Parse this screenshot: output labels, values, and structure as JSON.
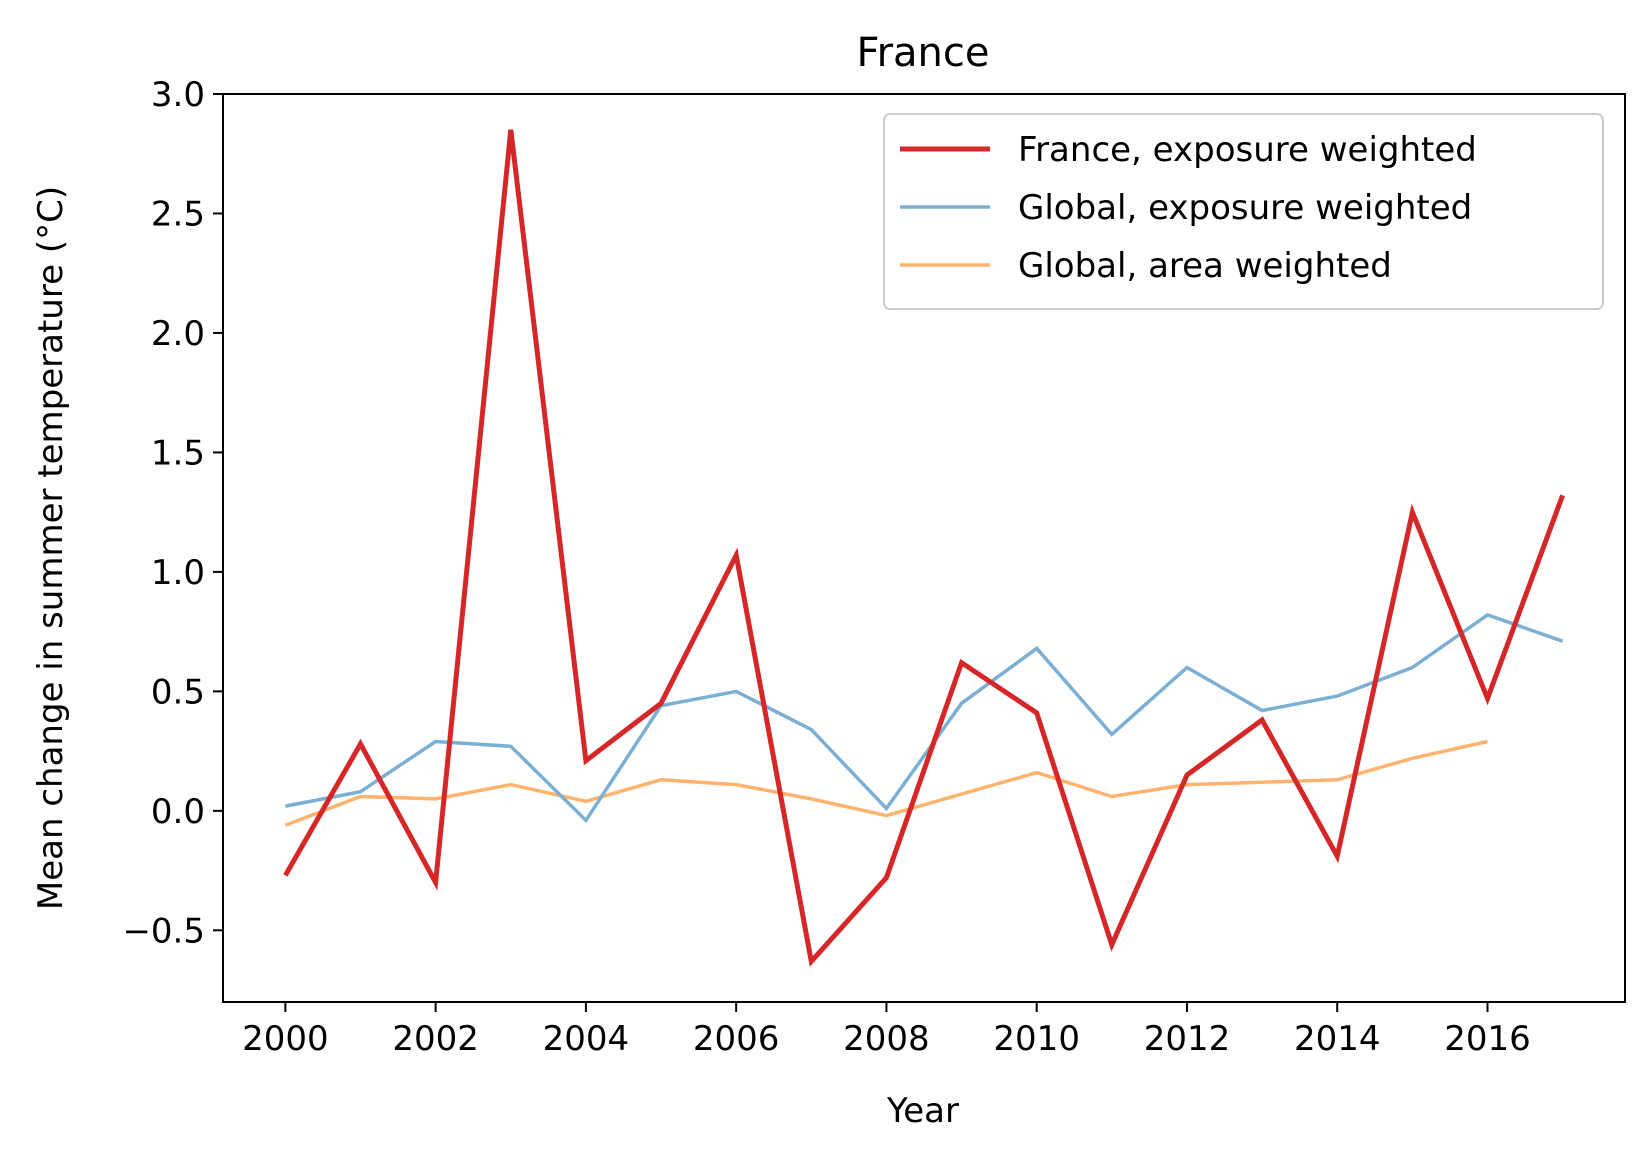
{
  "chart_data": {
    "type": "line",
    "title": "France",
    "xlabel": "Year",
    "ylabel": "Mean change in summer temperature (°C)",
    "xlim": [
      1999.17,
      2017.83
    ],
    "ylim": [
      -0.8,
      3.0
    ],
    "x_ticks": [
      2000,
      2002,
      2004,
      2006,
      2008,
      2010,
      2012,
      2014,
      2016
    ],
    "y_ticks": [
      -0.5,
      0.0,
      0.5,
      1.0,
      1.5,
      2.0,
      2.5,
      3.0
    ],
    "x_tick_labels": [
      "2000",
      "2002",
      "2004",
      "2006",
      "2008",
      "2010",
      "2012",
      "2014",
      "2016"
    ],
    "y_tick_labels": [
      "−0.5",
      "0.0",
      "0.5",
      "1.0",
      "1.5",
      "2.0",
      "2.5",
      "3.0"
    ],
    "grid": false,
    "legend_position": "top-right",
    "series": [
      {
        "name": "France, exposure weighted",
        "color": "#d62728",
        "x": [
          2000,
          2001,
          2002,
          2003,
          2004,
          2005,
          2006,
          2007,
          2008,
          2009,
          2010,
          2011,
          2012,
          2013,
          2014,
          2015,
          2016,
          2017
        ],
        "values": [
          -0.27,
          0.28,
          -0.3,
          2.85,
          0.21,
          0.45,
          1.07,
          -0.63,
          -0.28,
          0.62,
          0.41,
          -0.56,
          0.15,
          0.38,
          -0.19,
          1.25,
          0.47,
          1.32
        ]
      },
      {
        "name": "Global, exposure weighted",
        "color": "#7bafd4",
        "x": [
          2000,
          2001,
          2002,
          2003,
          2004,
          2005,
          2006,
          2007,
          2008,
          2009,
          2010,
          2011,
          2012,
          2013,
          2014,
          2015,
          2016,
          2017
        ],
        "values": [
          0.02,
          0.08,
          0.29,
          0.27,
          -0.04,
          0.44,
          0.5,
          0.34,
          0.01,
          0.45,
          0.68,
          0.32,
          0.6,
          0.42,
          0.48,
          0.6,
          0.82,
          0.71
        ]
      },
      {
        "name": "Global, area weighted",
        "color": "#ffb36e",
        "x": [
          2000,
          2001,
          2002,
          2003,
          2004,
          2005,
          2006,
          2007,
          2008,
          2009,
          2010,
          2011,
          2012,
          2013,
          2014,
          2015,
          2016
        ],
        "values": [
          -0.06,
          0.06,
          0.05,
          0.11,
          0.04,
          0.13,
          0.11,
          0.05,
          -0.02,
          0.07,
          0.16,
          0.06,
          0.11,
          0.12,
          0.13,
          0.22,
          0.29
        ]
      }
    ]
  }
}
